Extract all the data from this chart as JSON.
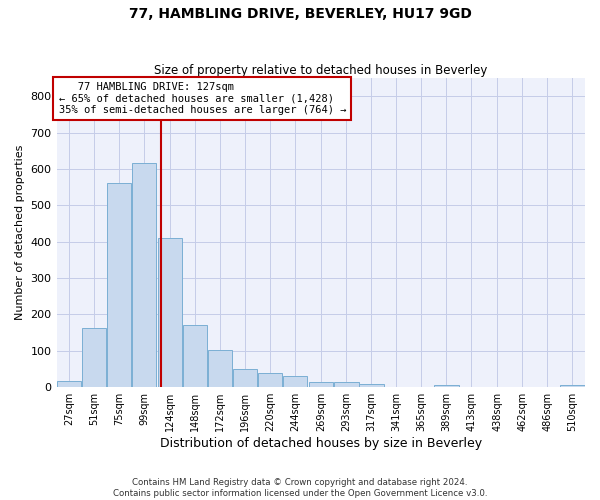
{
  "title": "77, HAMBLING DRIVE, BEVERLEY, HU17 9GD",
  "subtitle": "Size of property relative to detached houses in Beverley",
  "xlabel": "Distribution of detached houses by size in Beverley",
  "ylabel": "Number of detached properties",
  "bar_color": "#c8d9ee",
  "bar_edge_color": "#7bafd4",
  "vline_color": "#c00000",
  "vline_x": 127,
  "categories": [
    "27sqm",
    "51sqm",
    "75sqm",
    "99sqm",
    "124sqm",
    "148sqm",
    "172sqm",
    "196sqm",
    "220sqm",
    "244sqm",
    "269sqm",
    "293sqm",
    "317sqm",
    "341sqm",
    "365sqm",
    "389sqm",
    "413sqm",
    "438sqm",
    "462sqm",
    "486sqm",
    "510sqm"
  ],
  "bin_edges": [
    27,
    51,
    75,
    99,
    124,
    148,
    172,
    196,
    220,
    244,
    269,
    293,
    317,
    341,
    365,
    389,
    413,
    438,
    462,
    486,
    510
  ],
  "bin_width": 24,
  "values": [
    17,
    163,
    562,
    617,
    410,
    170,
    103,
    50,
    38,
    30,
    14,
    13,
    10,
    0,
    0,
    7,
    0,
    0,
    0,
    0,
    7
  ],
  "ylim": [
    0,
    850
  ],
  "yticks": [
    0,
    100,
    200,
    300,
    400,
    500,
    600,
    700,
    800
  ],
  "annotation_text": "   77 HAMBLING DRIVE: 127sqm\n← 65% of detached houses are smaller (1,428)\n35% of semi-detached houses are larger (764) →",
  "annotation_box_color": "white",
  "annotation_box_edge_color": "#c00000",
  "footer1": "Contains HM Land Registry data © Crown copyright and database right 2024.",
  "footer2": "Contains public sector information licensed under the Open Government Licence v3.0.",
  "bg_color": "#eef1fb",
  "grid_color": "#c5cce8"
}
